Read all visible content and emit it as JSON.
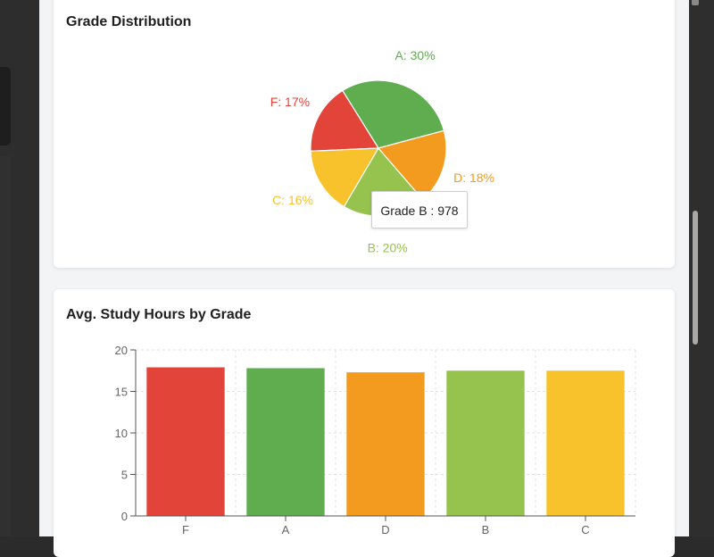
{
  "pie_card": {
    "title": "Grade Distribution"
  },
  "bar_card": {
    "title": "Avg. Study Hours by Grade"
  },
  "tooltip": {
    "text": "Grade B : 978"
  },
  "chart_data": [
    {
      "type": "pie",
      "title": "Grade Distribution",
      "slices": [
        {
          "label": "A",
          "display": "A: 30%",
          "percent": 30,
          "color": "#5fad4e"
        },
        {
          "label": "F",
          "display": "F: 17%",
          "percent": 17,
          "color": "#e3443a"
        },
        {
          "label": "C",
          "display": "C: 16%",
          "percent": 16,
          "color": "#f7c22c"
        },
        {
          "label": "B",
          "display": "B: 20%",
          "percent": 20,
          "color": "#96c34e",
          "count": 978
        },
        {
          "label": "D",
          "display": "D: 18%",
          "percent": 18,
          "color": "#f29b1f"
        }
      ]
    },
    {
      "type": "bar",
      "title": "Avg. Study Hours by Grade",
      "categories": [
        "F",
        "A",
        "D",
        "B",
        "C"
      ],
      "values": [
        17.9,
        17.8,
        17.3,
        17.5,
        17.5
      ],
      "colors": [
        "#e3443a",
        "#5fad4e",
        "#f29b1f",
        "#96c34e",
        "#f7c22c"
      ],
      "xlabel": "",
      "ylabel": "",
      "ylim": [
        0,
        20
      ],
      "yticks": [
        0,
        5,
        10,
        15,
        20
      ],
      "grid": true
    }
  ]
}
